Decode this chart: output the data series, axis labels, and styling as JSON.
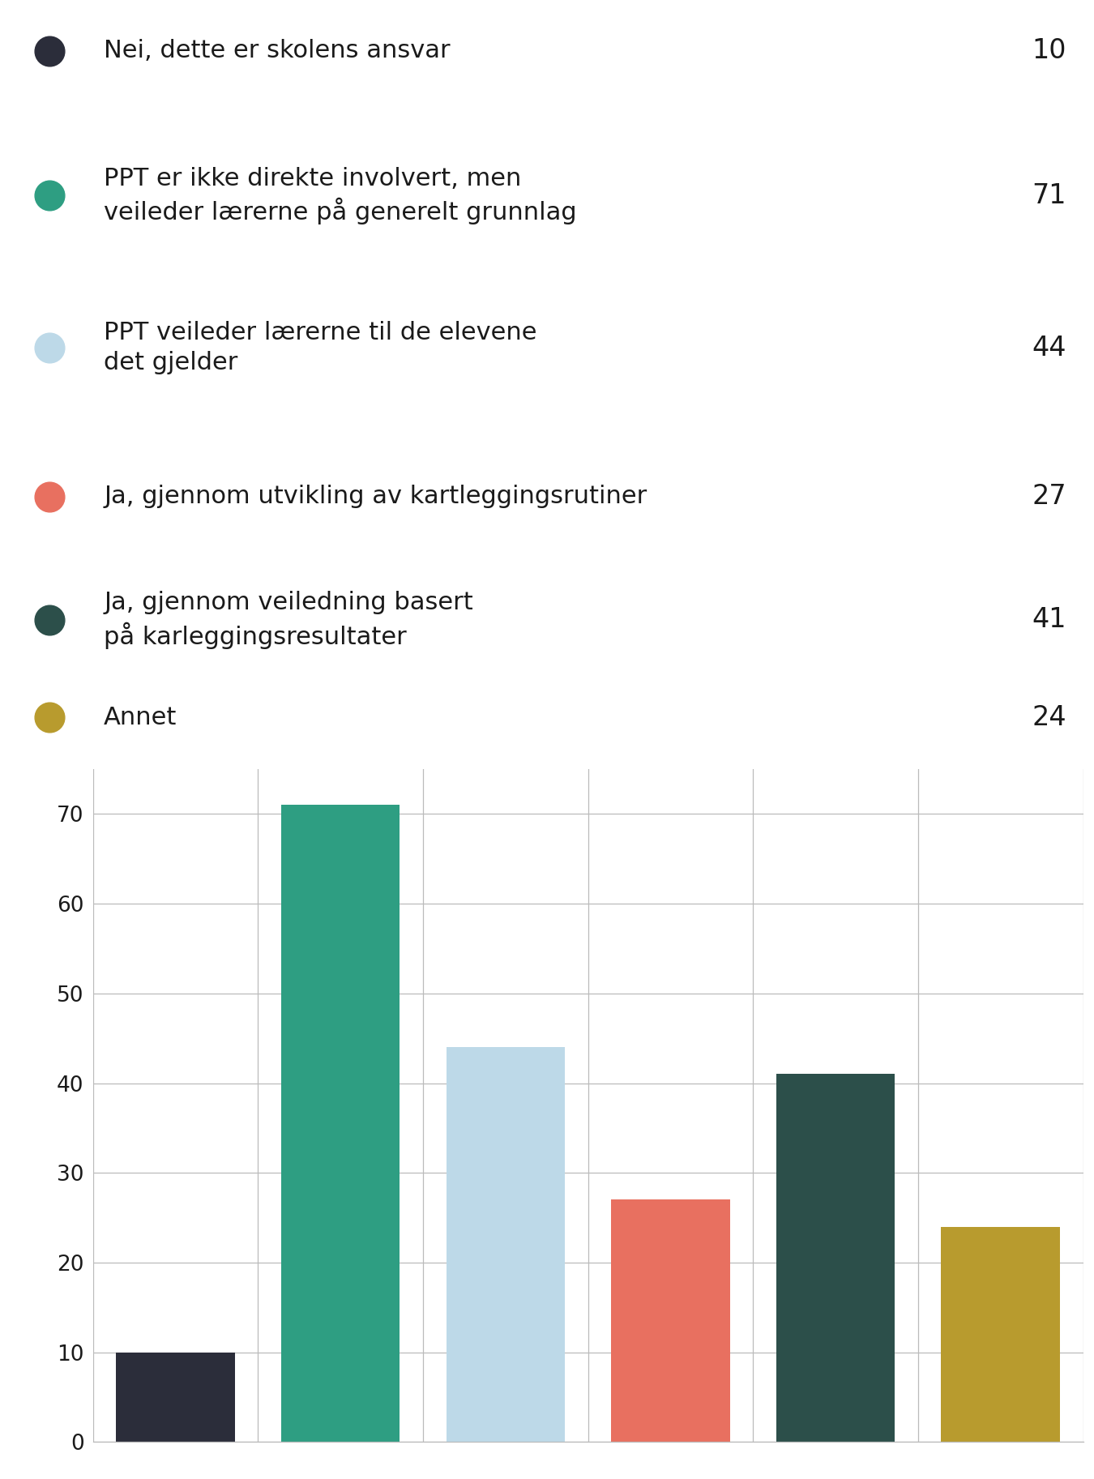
{
  "legend_labels": [
    "Nei, dette er skolens ansvar",
    "PPT er ikke direkte involvert, men\nveileder lærerne på generelt grunnlag",
    "PPT veileder lærerne til de elevene\ndet gjelder",
    "Ja, gjennom utvikling av kartleggingsrutiner",
    "Ja, gjennom veiledning basert\npå karleggingsresultater",
    "Annet"
  ],
  "legend_values": [
    10,
    71,
    44,
    27,
    41,
    24
  ],
  "values": [
    10,
    71,
    44,
    27,
    41,
    24
  ],
  "bar_colors": [
    "#2b2d3a",
    "#2e9e82",
    "#bdd9e8",
    "#e87060",
    "#2c4f4a",
    "#b89b2e"
  ],
  "dot_colors": [
    "#2b2d3a",
    "#2e9e82",
    "#bdd9e8",
    "#e87060",
    "#2c4f4a",
    "#b89b2e"
  ],
  "ylim": [
    0,
    75
  ],
  "yticks": [
    0,
    10,
    20,
    30,
    40,
    50,
    60,
    70
  ],
  "background_color": "#ffffff",
  "grid_color": "#bbbbbb",
  "text_color": "#1a1a1a",
  "legend_fontsize": 22,
  "value_fontsize": 24,
  "axis_fontsize": 19
}
